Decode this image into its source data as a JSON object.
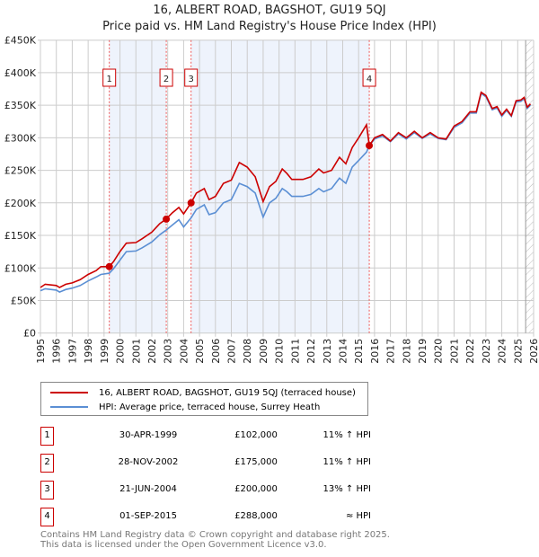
{
  "chart_data": {
    "type": "line",
    "title": "16, ALBERT ROAD, BAGSHOT, GU19 5QJ",
    "subtitle": "Price paid vs. HM Land Registry's House Price Index (HPI)",
    "xlabel": "",
    "ylabel": "",
    "xlim": [
      1995,
      2026
    ],
    "ylim": [
      0,
      450000
    ],
    "yticks": [
      "£0",
      "£50K",
      "£100K",
      "£150K",
      "£200K",
      "£250K",
      "£300K",
      "£350K",
      "£400K",
      "£450K"
    ],
    "xticks": [
      "1995",
      "1996",
      "1997",
      "1998",
      "1999",
      "2000",
      "2001",
      "2002",
      "2003",
      "2004",
      "2005",
      "2006",
      "2007",
      "2008",
      "2009",
      "2010",
      "2011",
      "2012",
      "2013",
      "2014",
      "2015",
      "2016",
      "2017",
      "2018",
      "2019",
      "2020",
      "2021",
      "2022",
      "2023",
      "2024",
      "2025",
      "2026"
    ],
    "grid": true,
    "legend_position": "below",
    "x": [
      1995,
      1995.3,
      1996,
      1996.2,
      1996.6,
      1997,
      1997.5,
      1998,
      1998.5,
      1998.8,
      1999.33,
      1999.6,
      2000,
      2000.4,
      2001,
      2001.4,
      2002,
      2002.5,
      2002.9,
      2003.3,
      2003.7,
      2004,
      2004.47,
      2004.8,
      2005.3,
      2005.6,
      2006,
      2006.5,
      2007,
      2007.5,
      2008,
      2008.5,
      2009,
      2009.4,
      2009.8,
      2010.2,
      2010.5,
      2010.8,
      2011.5,
      2012,
      2012.5,
      2012.8,
      2013.3,
      2013.8,
      2014.2,
      2014.6,
      2015,
      2015.5,
      2015.67,
      2016,
      2016.5,
      2017,
      2017.5,
      2018,
      2018.5,
      2019,
      2019.5,
      2020,
      2020.5,
      2021,
      2021.5,
      2022,
      2022.4,
      2022.7,
      2023,
      2023.4,
      2023.7,
      2024,
      2024.3,
      2024.6,
      2024.9,
      2025.2,
      2025.4,
      2025.6,
      2025.8
    ],
    "series": [
      {
        "name": "16, ALBERT ROAD, BAGSHOT, GU19 5QJ (terraced house)",
        "color": "#cc0000",
        "values": [
          70000,
          75000,
          73000,
          70000,
          75000,
          77000,
          82000,
          90000,
          96000,
          102000,
          102000,
          110000,
          125000,
          138000,
          139000,
          145000,
          155000,
          168000,
          175000,
          185000,
          193000,
          183000,
          200000,
          215000,
          222000,
          205000,
          210000,
          230000,
          235000,
          262000,
          255000,
          240000,
          202000,
          225000,
          233000,
          252000,
          245000,
          236000,
          236000,
          240000,
          252000,
          246000,
          250000,
          270000,
          260000,
          285000,
          300000,
          320000,
          288000,
          300000,
          305000,
          295000,
          308000,
          300000,
          310000,
          300000,
          308000,
          300000,
          298000,
          318000,
          325000,
          340000,
          340000,
          370000,
          365000,
          345000,
          348000,
          335000,
          344000,
          334000,
          357000,
          358000,
          362000,
          347000,
          352000
        ]
      },
      {
        "name": "HPI: Average price, terraced house, Surrey Heath",
        "color": "#5b8fd4",
        "values": [
          65000,
          68000,
          66000,
          63000,
          67000,
          69000,
          73000,
          80000,
          86000,
          90000,
          92000,
          99000,
          112000,
          125000,
          126000,
          131000,
          140000,
          151000,
          158000,
          166000,
          174000,
          163000,
          177000,
          190000,
          197000,
          182000,
          185000,
          200000,
          205000,
          230000,
          225000,
          215000,
          178000,
          200000,
          207000,
          222000,
          217000,
          210000,
          210000,
          213000,
          222000,
          217000,
          222000,
          238000,
          230000,
          255000,
          265000,
          278000,
          288000,
          298000,
          303000,
          294000,
          306000,
          298000,
          308000,
          299000,
          306000,
          299000,
          297000,
          316000,
          323000,
          338000,
          338000,
          368000,
          363000,
          343000,
          346000,
          333000,
          342000,
          333000,
          355000,
          356000,
          360000,
          345000,
          350000
        ]
      }
    ],
    "sales": [
      {
        "n": "1",
        "year": 1999.33,
        "date": "30-APR-1999",
        "price": 102000,
        "price_label": "£102,000",
        "hpi": "11% ↑ HPI"
      },
      {
        "n": "2",
        "year": 2002.91,
        "date": "28-NOV-2002",
        "price": 175000,
        "price_label": "£175,000",
        "hpi": "11% ↑ HPI"
      },
      {
        "n": "3",
        "year": 2004.47,
        "date": "21-JUN-2004",
        "price": 200000,
        "price_label": "£200,000",
        "hpi": "13% ↑ HPI"
      },
      {
        "n": "4",
        "year": 2015.67,
        "date": "01-SEP-2015",
        "price": 288000,
        "price_label": "£288,000",
        "hpi": "≈ HPI"
      }
    ],
    "forecast_from": 2025.5
  },
  "footer": [
    "Contains HM Land Registry data © Crown copyright and database right 2025.",
    "This data is licensed under the Open Government Licence v3.0."
  ]
}
